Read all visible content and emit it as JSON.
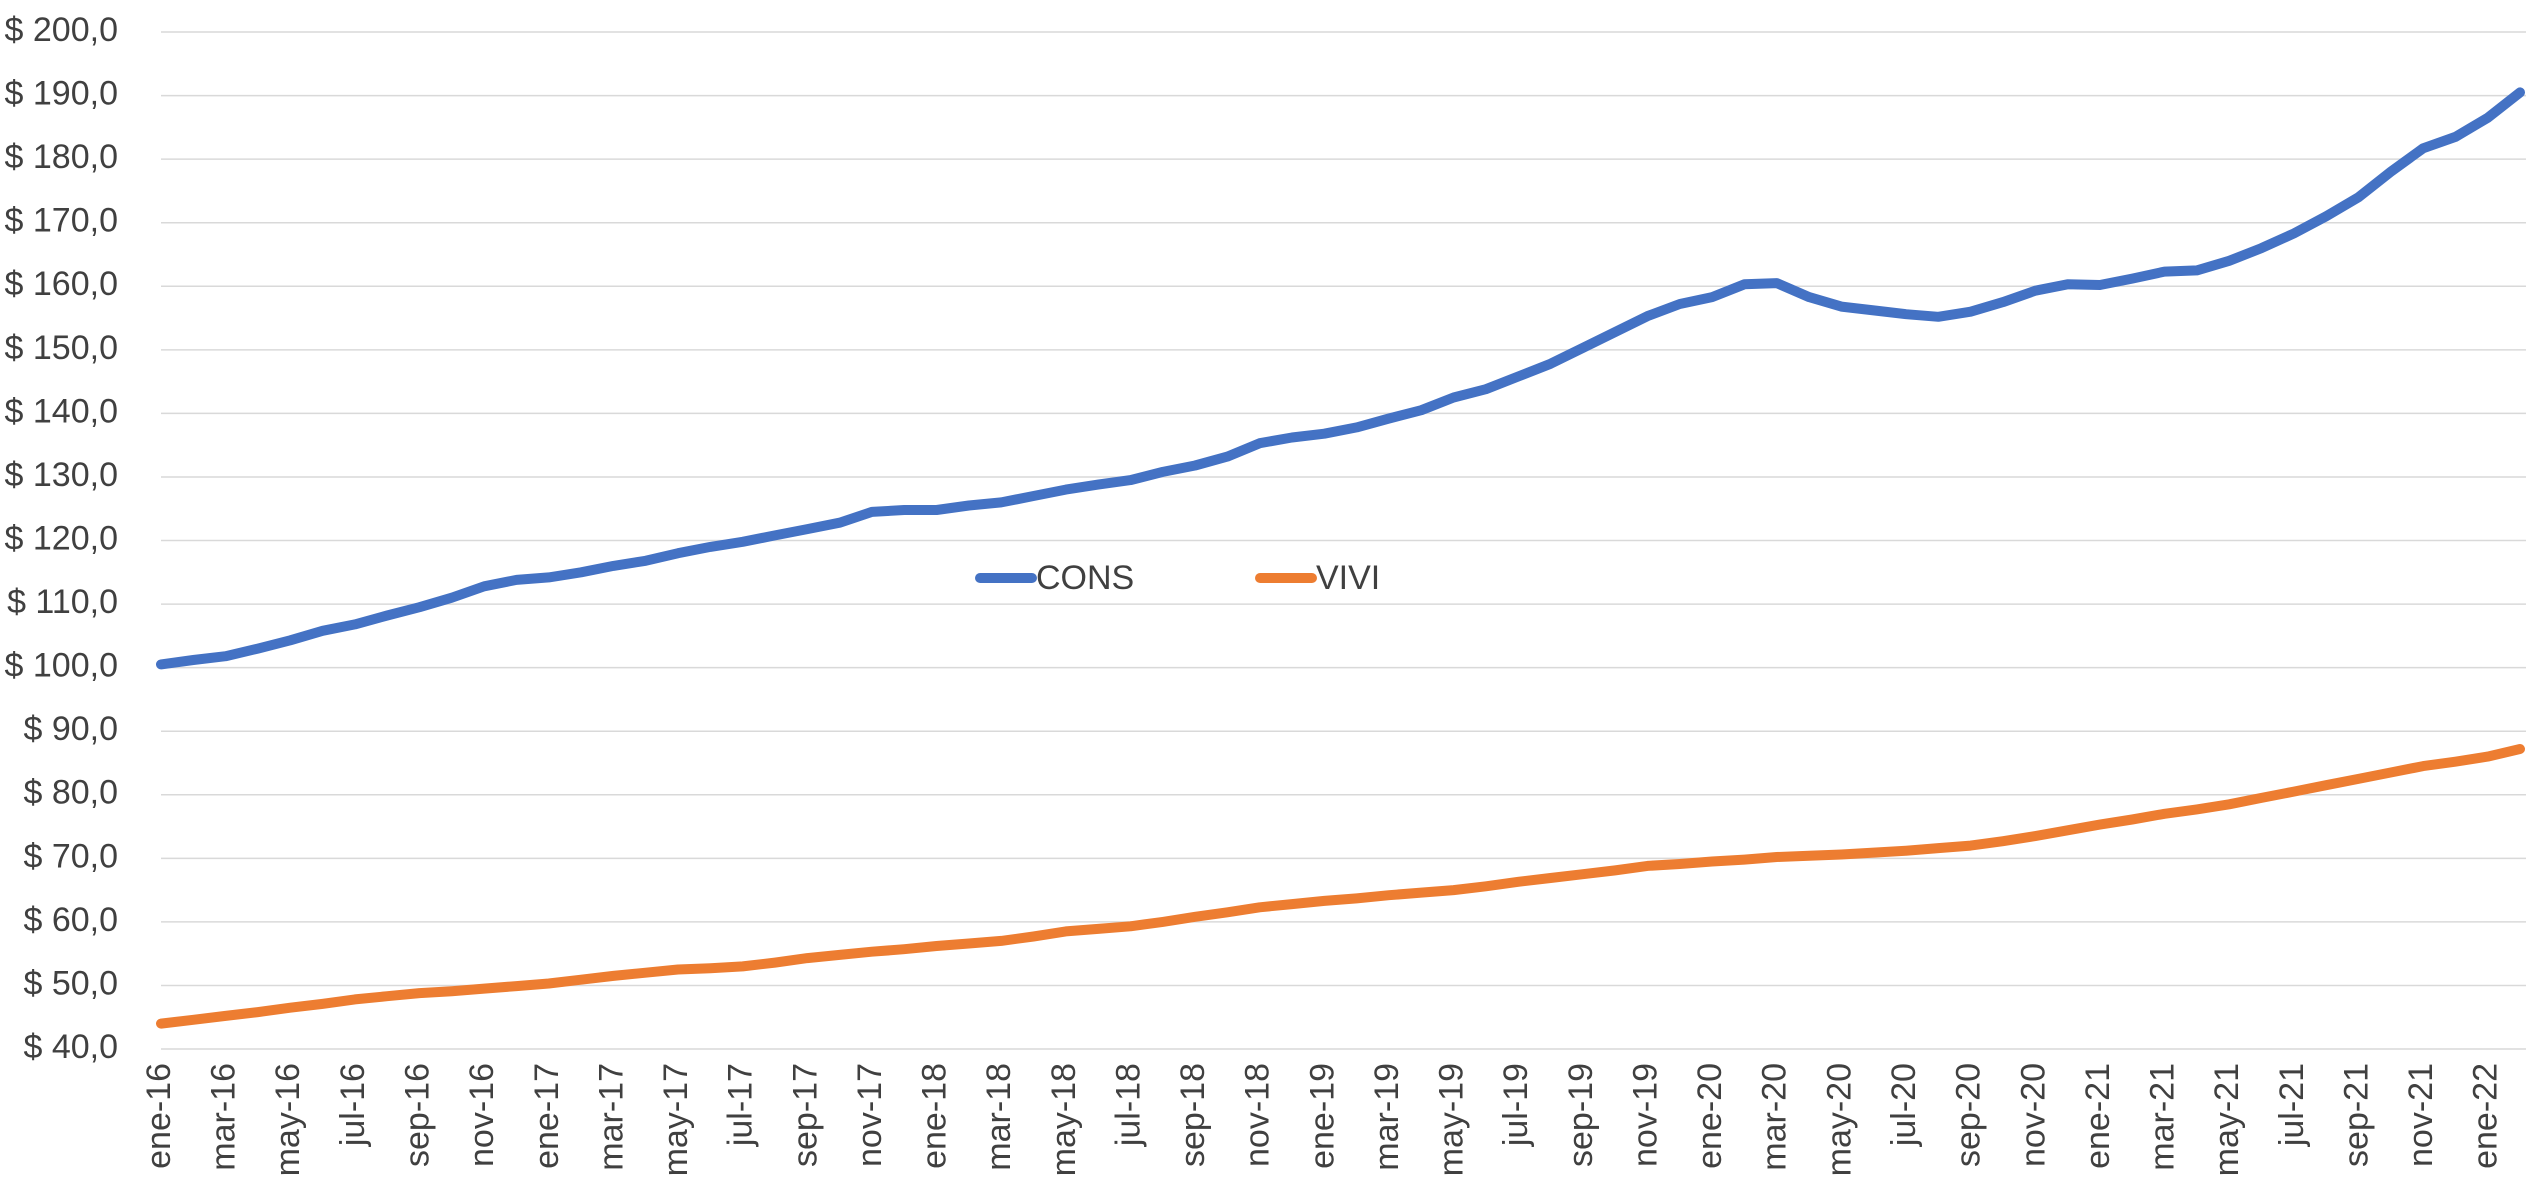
{
  "chart_data": {
    "type": "line",
    "categories": [
      "ene-16",
      null,
      "mar-16",
      null,
      "may-16",
      null,
      "jul-16",
      null,
      "sep-16",
      null,
      "nov-16",
      null,
      "ene-17",
      null,
      "mar-17",
      null,
      "may-17",
      null,
      "jul-17",
      null,
      "sep-17",
      null,
      "nov-17",
      null,
      "ene-18",
      null,
      "mar-18",
      null,
      "may-18",
      null,
      "jul-18",
      null,
      "sep-18",
      null,
      "nov-18",
      null,
      "ene-19",
      null,
      "mar-19",
      null,
      "may-19",
      null,
      "jul-19",
      null,
      "sep-19",
      null,
      "nov-19",
      null,
      "ene-20",
      null,
      "mar-20",
      null,
      "may-20",
      null,
      "jul-20",
      null,
      "sep-20",
      null,
      "nov-20",
      null,
      "ene-21",
      null,
      "mar-21",
      null,
      "may-21",
      null,
      "jul-21",
      null,
      "sep-21",
      null,
      "nov-21",
      null,
      "ene-22",
      null
    ],
    "series": [
      {
        "name": "CONS",
        "color": "#4472c4",
        "values": [
          100.5,
          101.2,
          101.8,
          103,
          104.3,
          105.8,
          106.8,
          108.2,
          109.5,
          111,
          112.8,
          113.8,
          114.2,
          115,
          116,
          116.8,
          118,
          119,
          119.8,
          120.8,
          121.8,
          122.8,
          124.5,
          124.8,
          124.8,
          125.5,
          126,
          127,
          128,
          128.8,
          129.5,
          130.8,
          131.8,
          133.2,
          135.3,
          136.2,
          136.8,
          137.8,
          139.2,
          140.5,
          142.5,
          143.8,
          145.8,
          147.8,
          150.3,
          152.8,
          155.3,
          157.2,
          158.3,
          160.3,
          160.5,
          158.3,
          156.8,
          156.2,
          155.6,
          155.2,
          156,
          157.5,
          159.3,
          160.3,
          160.2,
          161.2,
          162.3,
          162.5,
          164,
          166,
          168.3,
          171,
          174,
          178,
          181.7,
          183.5,
          186.5,
          190.5
        ]
      },
      {
        "name": "VIVI",
        "color": "#ed7d31",
        "values": [
          44,
          44.6,
          45.2,
          45.8,
          46.5,
          47.1,
          47.8,
          48.3,
          48.8,
          49.1,
          49.5,
          49.9,
          50.3,
          50.9,
          51.5,
          52,
          52.5,
          52.7,
          53,
          53.6,
          54.3,
          54.8,
          55.3,
          55.7,
          56.2,
          56.6,
          57,
          57.7,
          58.5,
          58.9,
          59.3,
          60,
          60.8,
          61.5,
          62.3,
          62.8,
          63.3,
          63.7,
          64.2,
          64.6,
          65,
          65.6,
          66.3,
          66.9,
          67.5,
          68.1,
          68.8,
          69.1,
          69.5,
          69.8,
          70.2,
          70.4,
          70.6,
          70.9,
          71.2,
          71.6,
          72,
          72.7,
          73.5,
          74.4,
          75.3,
          76.1,
          77,
          77.7,
          78.5,
          79.5,
          80.5,
          81.5,
          82.5,
          83.5,
          84.5,
          85.2,
          86,
          87.2
        ]
      }
    ],
    "ylim": [
      40,
      200
    ],
    "yticks": [
      {
        "value": 40,
        "label": "$ 40,0"
      },
      {
        "value": 50,
        "label": "$ 50,0"
      },
      {
        "value": 60,
        "label": "$ 60,0"
      },
      {
        "value": 70,
        "label": "$ 70,0"
      },
      {
        "value": 80,
        "label": "$ 80,0"
      },
      {
        "value": 90,
        "label": "$ 90,0"
      },
      {
        "value": 100,
        "label": "$ 100,0"
      },
      {
        "value": 110,
        "label": "$ 110,0"
      },
      {
        "value": 120,
        "label": "$ 120,0"
      },
      {
        "value": 130,
        "label": "$ 130,0"
      },
      {
        "value": 140,
        "label": "$ 140,0"
      },
      {
        "value": 150,
        "label": "$ 150,0"
      },
      {
        "value": 160,
        "label": "$ 160,0"
      },
      {
        "value": 170,
        "label": "$ 170,0"
      },
      {
        "value": 180,
        "label": "$ 180,0"
      },
      {
        "value": 190,
        "label": "$ 190,0"
      },
      {
        "value": 200,
        "label": "$ 200,0"
      }
    ],
    "grid": true
  }
}
